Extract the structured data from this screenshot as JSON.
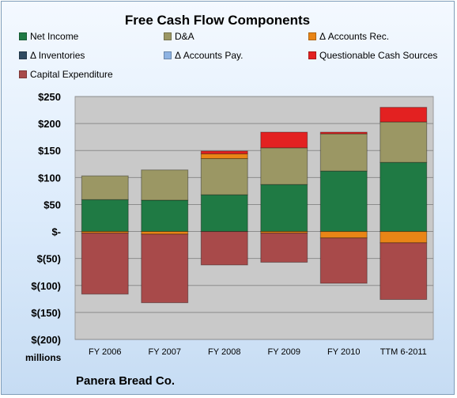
{
  "chart_data": {
    "type": "bar",
    "stacked": true,
    "title": "Free Cash Flow Components",
    "categories": [
      "FY 2006",
      "FY 2007",
      "FY 2008",
      "FY 2009",
      "FY 2010",
      "TTM 6-2011"
    ],
    "series": [
      {
        "name": "Net Income",
        "color": "#1f7a44",
        "values": [
          59,
          58,
          68,
          87,
          112,
          128
        ]
      },
      {
        "name": "D&A",
        "color": "#9b9764",
        "values": [
          44,
          56,
          67,
          68,
          69,
          75
        ]
      },
      {
        "name": "Δ Accounts Rec.",
        "color": "#e98516",
        "values": [
          -3,
          -5,
          9,
          -3,
          -12,
          -21
        ]
      },
      {
        "name": "Δ Inventories",
        "color": "#2f4a60",
        "values": [
          0,
          0,
          0,
          0,
          0,
          0
        ]
      },
      {
        "name": "Δ Accounts Pay.",
        "color": "#8db3e2",
        "values": [
          0,
          0,
          0,
          0,
          0,
          0
        ]
      },
      {
        "name": "Questionable Cash Sources",
        "color": "#e32121",
        "values": [
          0,
          0,
          5,
          29,
          3,
          27
        ]
      },
      {
        "name": "Capital Expenditure",
        "color": "#a84a4a",
        "values": [
          -113,
          -127,
          -62,
          -54,
          -84,
          -105
        ]
      }
    ],
    "ylim": [
      -200,
      250
    ],
    "y_ticks": [
      250,
      200,
      150,
      100,
      50,
      0,
      -50,
      -100,
      -150,
      -200
    ],
    "y_tick_labels": [
      "$250",
      "$200",
      "$150",
      "$100",
      "$50",
      "$-",
      "$(50)",
      "$(100)",
      "$(150)",
      "$(200)"
    ],
    "grid": true,
    "legend_position": "top",
    "unit_label": "millions",
    "annotation": "Panera Bread Co."
  }
}
